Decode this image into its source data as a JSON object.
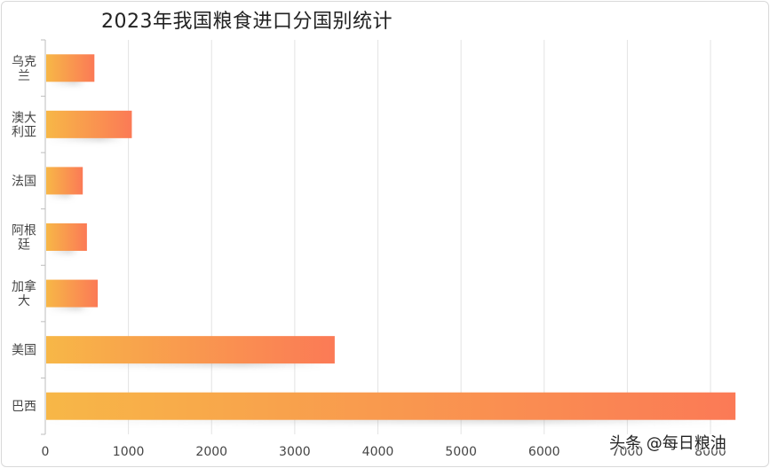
{
  "chart_data": {
    "type": "bar",
    "orientation": "horizontal",
    "title": "2023年我国粮食进口分国别统计",
    "categories": [
      "乌克兰",
      "澳大利亚",
      "法国",
      "阿根廷",
      "加拿大",
      "美国",
      "巴西"
    ],
    "category_labels": [
      [
        "乌克",
        "兰"
      ],
      [
        "澳大",
        "利亚"
      ],
      [
        "法国"
      ],
      [
        "阿根",
        "廷"
      ],
      [
        "加拿",
        "大"
      ],
      [
        "美国"
      ],
      [
        "巴西"
      ]
    ],
    "values": [
      580,
      1030,
      440,
      490,
      620,
      3470,
      8290
    ],
    "xlim": [
      0,
      8000
    ],
    "xticks": [
      0,
      1000,
      2000,
      3000,
      4000,
      5000,
      6000,
      7000,
      8000
    ],
    "grid": true,
    "colors": {
      "bar_start": "#f7b747",
      "bar_end": "#fb7a56",
      "grid": "#e3e3e3",
      "axis": "#bdbdbd",
      "text": "#444444"
    }
  },
  "watermark": "头条 @每日粮油"
}
